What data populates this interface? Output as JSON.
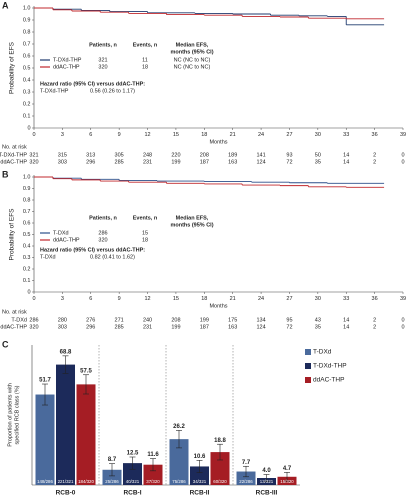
{
  "chart_data": [
    {
      "type": "km",
      "panel": "A",
      "ylabel": "Probability of EFS",
      "xlabel": "Months",
      "xlim": [
        0,
        39
      ],
      "xticks": [
        0,
        3,
        6,
        9,
        12,
        15,
        18,
        21,
        24,
        27,
        30,
        33,
        36,
        39
      ],
      "ylim": [
        0,
        1
      ],
      "yticks": [
        0,
        0.1,
        0.2,
        0.3,
        0.4,
        0.5,
        0.6,
        0.7,
        0.8,
        0.9,
        {
          "value": 1,
          "label": "1.0"
        }
      ],
      "series": [
        {
          "name": "T-DXd-THP",
          "color": "#1f3a6e",
          "x": [
            0,
            2,
            5,
            8,
            12,
            17,
            21,
            25,
            28,
            31,
            33,
            37
          ],
          "values": [
            1,
            0.99,
            0.98,
            0.97,
            0.96,
            0.955,
            0.95,
            0.94,
            0.935,
            0.93,
            0.86,
            0.86
          ]
        },
        {
          "name": "ddAC-THP",
          "color": "#c0282d",
          "x": [
            0,
            2,
            4,
            7,
            10,
            14,
            18,
            22,
            26,
            29,
            33,
            37
          ],
          "values": [
            1,
            0.985,
            0.975,
            0.965,
            0.955,
            0.945,
            0.94,
            0.93,
            0.925,
            0.915,
            0.91,
            0.91
          ]
        }
      ],
      "col_patients": "Patients, n",
      "col_events": "Events, n",
      "col_median": [
        "Median EFS,",
        "months (95% CI)"
      ],
      "rows": [
        {
          "patients": 321,
          "events": 11,
          "median": "NC (NC to NC)"
        },
        {
          "patients": 320,
          "events": 18,
          "median": "NC (NC to NC)"
        }
      ],
      "hazard_ratio": {
        "title": "Hazard ratio (95% CI) versus ddAC-THP:",
        "arm": "T-DXd-THP",
        "value": "0.56 (0.26 to 1.17)"
      },
      "at_risk": {
        "title": "No. at risk",
        "rows": [
          {
            "arm": "T-DXd-THP",
            "values": [
              321,
              315,
              313,
              305,
              248,
              220,
              208,
              189,
              141,
              93,
              50,
              14,
              2,
              0
            ]
          },
          {
            "arm": "ddAC-THP",
            "values": [
              320,
              303,
              296,
              285,
              231,
              199,
              187,
              163,
              124,
              72,
              35,
              14,
              2,
              0
            ]
          }
        ]
      }
    },
    {
      "type": "km",
      "panel": "B",
      "ylabel": "Probability of EFS",
      "xlabel": "Months",
      "xlim": [
        0,
        39
      ],
      "xticks": [
        0,
        3,
        6,
        9,
        12,
        15,
        18,
        21,
        24,
        27,
        30,
        33,
        36,
        39
      ],
      "ylim": [
        0,
        1
      ],
      "yticks": [
        0,
        0.1,
        0.2,
        0.3,
        0.4,
        0.5,
        0.6,
        0.7,
        0.8,
        0.9,
        {
          "value": 1,
          "label": "1.0"
        }
      ],
      "series": [
        {
          "name": "T-DXd",
          "color": "#2c4f8a",
          "x": [
            0,
            2,
            5,
            9,
            13,
            18,
            23,
            27,
            31,
            37
          ],
          "values": [
            1,
            0.99,
            0.98,
            0.97,
            0.965,
            0.96,
            0.955,
            0.95,
            0.945,
            0.945
          ]
        },
        {
          "name": "ddAC-THP",
          "color": "#c0282d",
          "x": [
            0,
            2,
            4,
            7,
            10,
            14,
            18,
            22,
            26,
            29,
            33,
            37
          ],
          "values": [
            1,
            0.985,
            0.975,
            0.965,
            0.955,
            0.945,
            0.94,
            0.93,
            0.925,
            0.915,
            0.91,
            0.91
          ]
        }
      ],
      "col_patients": "Patients, n",
      "col_events": "Events, n",
      "col_median": [
        "Median EFS,",
        "months (95% CI)"
      ],
      "rows": [
        {
          "patients": 286,
          "events": 15
        },
        {
          "patients": 320,
          "events": 18
        }
      ],
      "hazard_ratio": {
        "title": "Hazard ratio (95% CI) versus ddAC-THP:",
        "arm": "T-DXd",
        "value": "0.82 (0.41 to 1.62)"
      },
      "at_risk": {
        "title": "No. at risk",
        "rows": [
          {
            "arm": "T-DXd",
            "values": [
              286,
              280,
              276,
              271,
              240,
              208,
              199,
              175,
              134,
              95,
              43,
              14,
              2,
              0
            ]
          },
          {
            "arm": "ddAC-THP",
            "values": [
              320,
              303,
              296,
              285,
              231,
              199,
              187,
              163,
              124,
              72,
              35,
              14,
              2,
              0
            ]
          }
        ]
      }
    },
    {
      "type": "bar",
      "panel": "C",
      "ylabel": [
        "Proportion of patients with",
        "specified RCB class (%)"
      ],
      "categories": [
        "RCB-0",
        "RCB-I",
        "RCB-II",
        "RCB-III"
      ],
      "ylim": [
        0,
        80
      ],
      "series": [
        {
          "name": "T-DXd",
          "color": "#4a6a9c",
          "values": [
            51.7,
            8.7,
            26.2,
            7.7
          ],
          "value_labels": [
            "51.7",
            "8.7",
            "26.2",
            "7.7"
          ],
          "errors": [
            6,
            3.5,
            5,
            3
          ],
          "counts": [
            "148/286",
            "25/286",
            "75/286",
            "22/286"
          ]
        },
        {
          "name": "T-DXd-THP",
          "color": "#1c2a5a",
          "values": [
            68.8,
            12.5,
            10.6,
            4.0
          ],
          "value_labels": [
            "68.8",
            "12.5",
            "10.6",
            "4.0"
          ],
          "errors": [
            5,
            3.5,
            3.5,
            2
          ],
          "counts": [
            "221/321",
            "40/321",
            "34/321",
            "13/321"
          ]
        },
        {
          "name": "ddAC-THP",
          "color": "#a51d24",
          "values": [
            57.5,
            11.6,
            18.8,
            4.7
          ],
          "value_labels": [
            "57.5",
            "11.6",
            "18.8",
            "4.7"
          ],
          "errors": [
            5.5,
            3.5,
            4.5,
            2.5
          ],
          "counts": [
            "184/320",
            "37/320",
            "60/320",
            "15/320"
          ]
        }
      ]
    }
  ]
}
